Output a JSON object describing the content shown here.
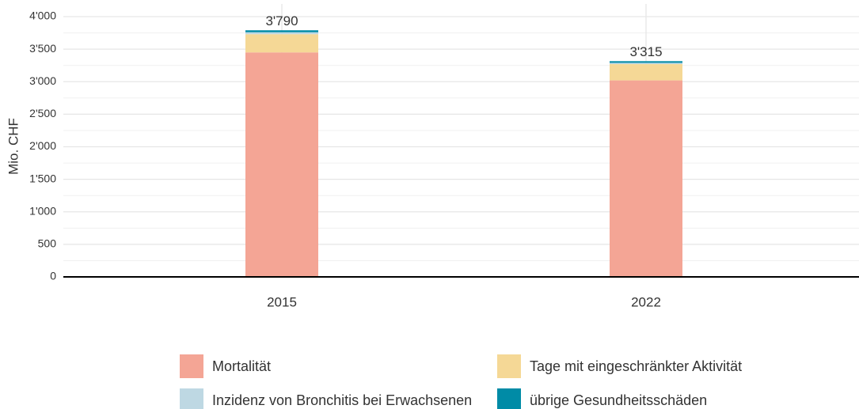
{
  "chart_data": {
    "type": "stacked_bar",
    "y_axis_label": "Mio. CHF",
    "categories": [
      "2015",
      "2022"
    ],
    "series": [
      {
        "name": "Mortalität",
        "color": "#f4a595",
        "values": [
          3450,
          3020
        ]
      },
      {
        "name": "Tage mit eingeschränkter Aktivität",
        "color": "#f5d896",
        "values": [
          280,
          250
        ]
      },
      {
        "name": "Inzidenz von Bronchitis bei Erwachsenen",
        "color": "#bed8e3",
        "values": [
          30,
          20
        ]
      },
      {
        "name": "übrige Gesundheitsschäden",
        "color": "#008ba6",
        "values": [
          30,
          25
        ]
      }
    ],
    "totals": [
      3790,
      3315
    ],
    "total_labels": [
      "3'790",
      "3'315"
    ],
    "ylim": [
      0,
      4000
    ],
    "yticks": [
      0,
      500,
      {
        "value": 1000,
        "label": "1'000"
      },
      {
        "value": 1500,
        "label": "1'500"
      },
      {
        "value": 2000,
        "label": "2'000"
      },
      {
        "value": 2500,
        "label": "2'500"
      },
      {
        "value": 3000,
        "label": "3'000"
      },
      {
        "value": 3500,
        "label": "3'500"
      },
      {
        "value": 4000,
        "label": "4'000"
      }
    ],
    "grid": true,
    "legend_position": "bottom"
  }
}
